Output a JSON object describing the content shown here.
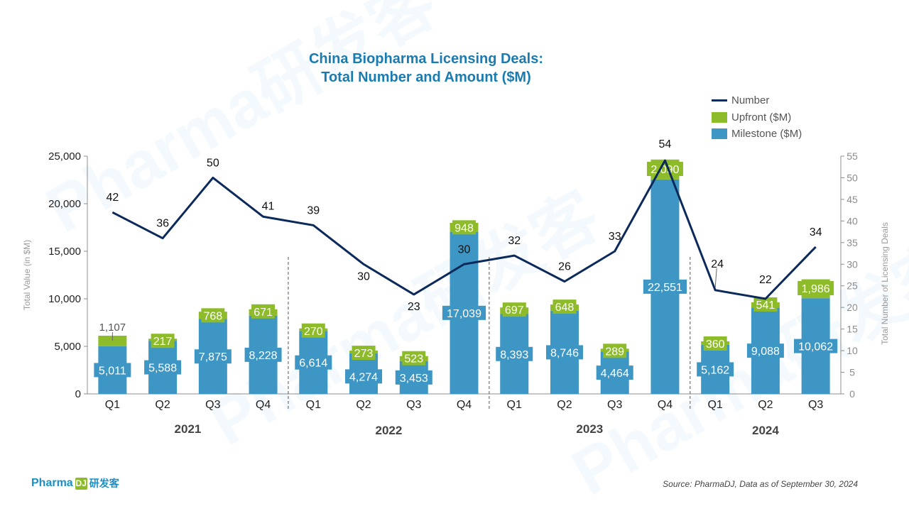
{
  "page": {
    "brand_text": "Pharma",
    "brand_mark": "DJ",
    "brand_cn": "研发客",
    "source": "Source: PharmaDJ, Data as of September 30, 2024",
    "watermark_text": "Pharma研发客"
  },
  "chart_data": {
    "type": "bar",
    "title_line1": "China Biopharma Licensing Deals:",
    "title_line2": "Total Number and Amount ($M)",
    "ylabel": "Total Value (in $M)",
    "y2label": "Total Number of Licensing Deals",
    "ylim": [
      0,
      25000
    ],
    "y_ticks": [
      "0",
      "5,000",
      "10,000",
      "15,000",
      "20,000",
      "25,000"
    ],
    "y2lim": [
      0,
      55
    ],
    "y2_ticks": [
      "0",
      "5",
      "10",
      "15",
      "20",
      "25",
      "30",
      "35",
      "40",
      "45",
      "50",
      "55"
    ],
    "categories": [
      "Q1",
      "Q2",
      "Q3",
      "Q4",
      "Q1",
      "Q2",
      "Q3",
      "Q4",
      "Q1",
      "Q2",
      "Q3",
      "Q4",
      "Q1",
      "Q2",
      "Q3"
    ],
    "year_groups": [
      {
        "label": "2021",
        "start": 0,
        "end": 3
      },
      {
        "label": "2022",
        "start": 4,
        "end": 7
      },
      {
        "label": "2023",
        "start": 8,
        "end": 11
      },
      {
        "label": "2024",
        "start": 12,
        "end": 14
      }
    ],
    "legend": [
      "Number",
      "Upfront ($M)",
      "Milestone ($M)"
    ],
    "legend_position": "top-right",
    "series": [
      {
        "name": "Milestone ($M)",
        "kind": "bar",
        "color": "#3e96c4",
        "values": [
          5011,
          5588,
          7875,
          8228,
          6614,
          4274,
          3453,
          17039,
          8393,
          8746,
          4464,
          22551,
          5162,
          9088,
          10062
        ],
        "labels": [
          "5,011",
          "5,588",
          "7,875",
          "8,228",
          "6,614",
          "4,274",
          "3,453",
          "17,039",
          "8,393",
          "8,746",
          "4,464",
          "22,551",
          "5,162",
          "9,088",
          "10,062"
        ]
      },
      {
        "name": "Upfront ($M)",
        "kind": "bar",
        "color": "#8dbb2a",
        "values": [
          1107,
          217,
          768,
          671,
          270,
          273,
          523,
          948,
          697,
          648,
          289,
          2090,
          360,
          541,
          1986
        ],
        "labels": [
          "1,107",
          "217",
          "768",
          "671",
          "270",
          "273",
          "523",
          "948",
          "697",
          "648",
          "289",
          "2,090",
          "360",
          "541",
          "1,986"
        ]
      },
      {
        "name": "Number",
        "kind": "line",
        "color": "#0b2a5b",
        "values": [
          42,
          36,
          50,
          41,
          39,
          30,
          23,
          30,
          32,
          26,
          33,
          54,
          24,
          22,
          34
        ],
        "labels": [
          "42",
          "36",
          "50",
          "41",
          "39",
          "30",
          "23",
          "30",
          "32",
          "26",
          "33",
          "54",
          "24",
          "22",
          "34"
        ]
      }
    ]
  }
}
